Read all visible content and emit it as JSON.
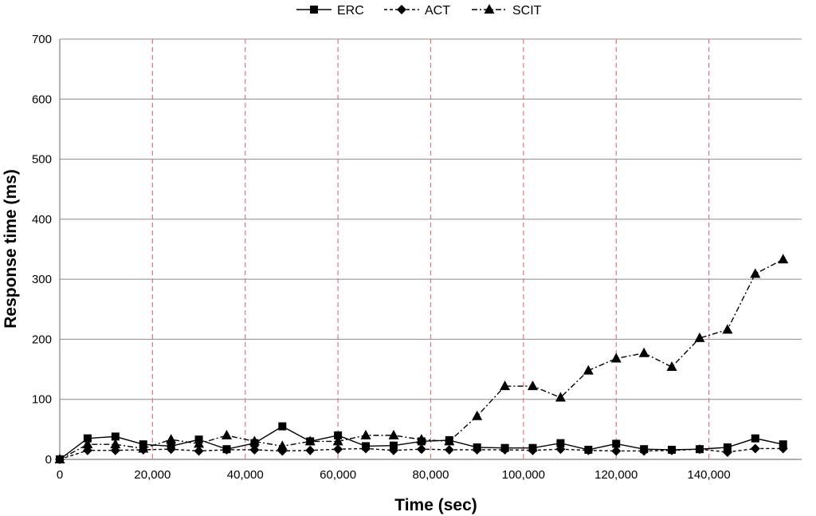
{
  "chart_data": {
    "type": "line",
    "xlabel": "Time (sec)",
    "ylabel": "Response time (ms)",
    "xlim": [
      0,
      160000
    ],
    "ylim": [
      0,
      700
    ],
    "x_ticks": [
      0,
      20000,
      40000,
      60000,
      80000,
      100000,
      120000,
      140000
    ],
    "x_tick_labels": [
      "0",
      "20,000",
      "40,000",
      "60,000",
      "80,000",
      "100,000",
      "120,000",
      "140,000"
    ],
    "y_ticks": [
      0,
      100,
      200,
      300,
      400,
      500,
      600,
      700
    ],
    "y_tick_labels": [
      "0",
      "100",
      "200",
      "300",
      "400",
      "500",
      "600",
      "700"
    ],
    "grid": "horizontal gridlines; vertical dashed red lines at 20,000-sec intervals",
    "legend_position": "top-center",
    "x": [
      0,
      6000,
      12000,
      18000,
      24000,
      30000,
      36000,
      42000,
      48000,
      54000,
      60000,
      66000,
      72000,
      78000,
      84000,
      90000,
      96000,
      102000,
      108000,
      114000,
      120000,
      126000,
      132000,
      138000,
      144000,
      150000,
      156000
    ],
    "series": [
      {
        "name": "ERC",
        "style": "solid",
        "marker": "square",
        "values": [
          0,
          35,
          38,
          25,
          22,
          33,
          17,
          27,
          55,
          30,
          40,
          22,
          23,
          30,
          32,
          20,
          19,
          19,
          27,
          16,
          26,
          17,
          16,
          17,
          20,
          35,
          25
        ]
      },
      {
        "name": "ACT",
        "style": "dashed",
        "marker": "diamond",
        "values": [
          0,
          15,
          15,
          16,
          17,
          14,
          16,
          16,
          14,
          15,
          17,
          18,
          15,
          17,
          16,
          16,
          16,
          15,
          17,
          15,
          14,
          14,
          15,
          17,
          12,
          18,
          18
        ]
      },
      {
        "name": "SCIT",
        "style": "dash-dot",
        "marker": "triangle",
        "values": [
          0,
          25,
          25,
          18,
          33,
          26,
          40,
          30,
          22,
          30,
          30,
          40,
          40,
          33,
          30,
          72,
          122,
          122,
          103,
          148,
          168,
          177,
          154,
          202,
          216,
          309,
          333
        ]
      }
    ]
  }
}
